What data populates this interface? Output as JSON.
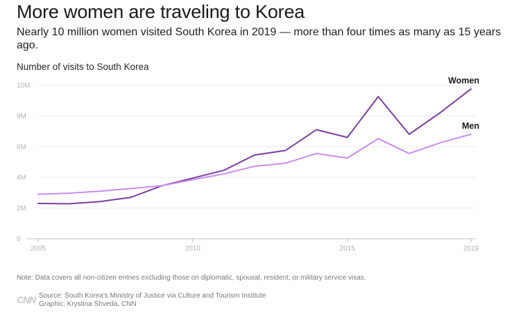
{
  "title": "More women are traveling to Korea",
  "subtitle": "Nearly 10 million women visited South Korea in 2019 — more than four times as many as 15 years ago.",
  "note": "Note: Data covers all non-citizen entries excluding those on diplomatic, spousal, resident, or military service visas.",
  "logo": "CNN",
  "source": "Source: South Korea's Ministry of Justice via Culture and Tourism Institute",
  "credit": "Graphic: Krystina Shveda, CNN",
  "colors": {
    "women": "#7b3fa0",
    "men": "#c88cf0",
    "grid": "#ececec",
    "axis": "#bdbdbd"
  },
  "chart_data": {
    "type": "line",
    "ylabel": "Number of visits to South Korea",
    "x": [
      2005,
      2006,
      2007,
      2008,
      2009,
      2010,
      2011,
      2012,
      2013,
      2014,
      2015,
      2016,
      2017,
      2018,
      2019
    ],
    "xlim": [
      2005,
      2019
    ],
    "ylim": [
      0,
      10
    ],
    "x_ticks": [
      2005,
      2010,
      2015,
      2019
    ],
    "x_tick_labels": [
      "2005",
      "2010",
      "2015",
      "2019"
    ],
    "y_ticks": [
      0,
      2,
      4,
      6,
      8,
      10
    ],
    "y_tick_labels": [
      "0",
      "2M",
      "4M",
      "6M",
      "8M",
      "10M"
    ],
    "grid": true,
    "series": [
      {
        "name": "Women",
        "color": "#7b3fa0",
        "values": [
          2.3,
          2.28,
          2.42,
          2.7,
          3.45,
          3.95,
          4.45,
          5.45,
          5.75,
          7.1,
          6.6,
          9.25,
          6.8,
          8.2,
          9.75
        ]
      },
      {
        "name": "Men",
        "color": "#c88cf0",
        "values": [
          2.9,
          2.97,
          3.1,
          3.27,
          3.45,
          3.85,
          4.22,
          4.72,
          4.92,
          5.55,
          5.25,
          6.52,
          5.55,
          6.25,
          6.8
        ]
      }
    ]
  }
}
